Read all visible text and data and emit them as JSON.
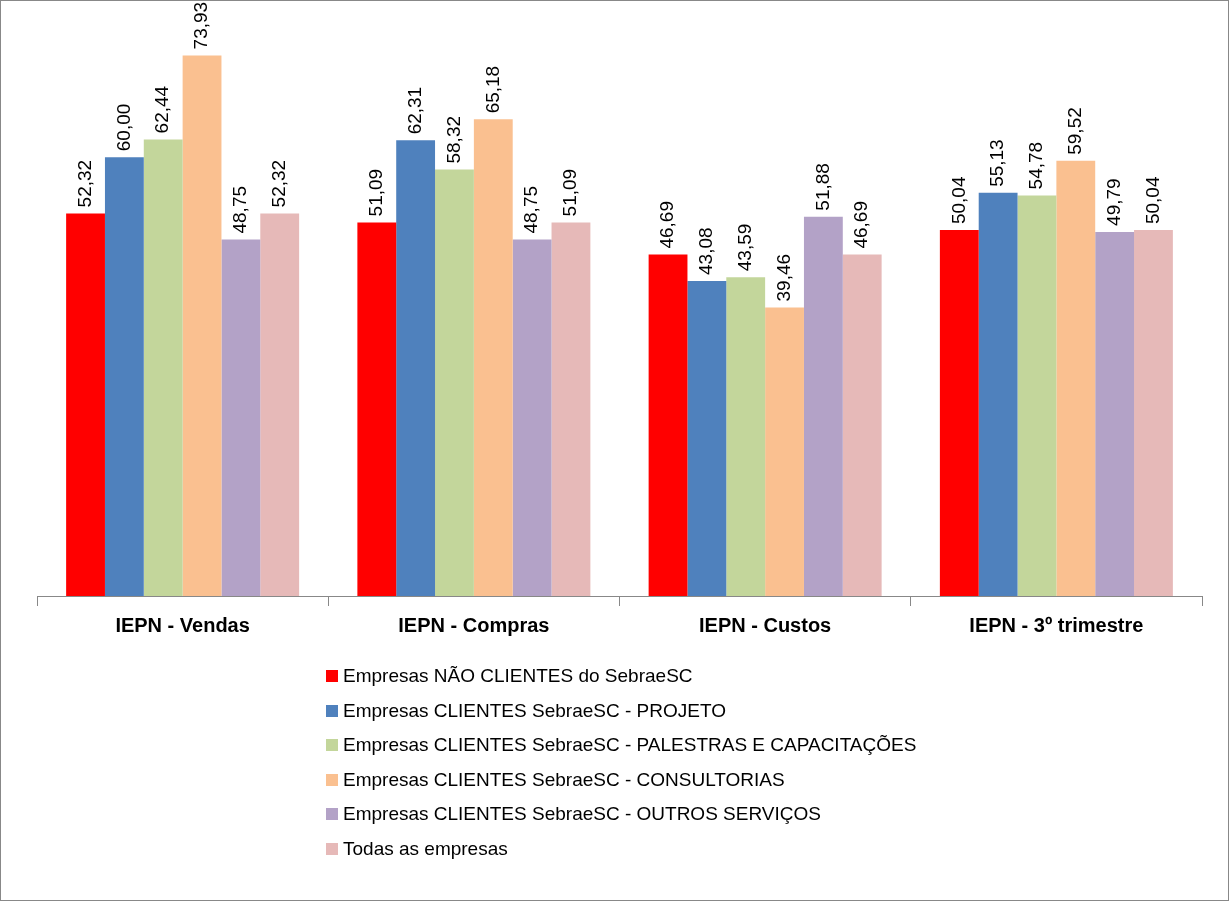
{
  "chart_data": {
    "type": "bar",
    "categories": [
      "IEPN - Vendas",
      "IEPN - Compras",
      "IEPN - Custos",
      "IEPN - 3º trimestre"
    ],
    "series": [
      {
        "name": "Empresas NÃO CLIENTES do SebraeSC",
        "color": "#ff0000",
        "values": [
          52.32,
          51.09,
          46.69,
          50.04
        ],
        "value_labels": [
          "52,32",
          "51,09",
          "46,69",
          "50,04"
        ]
      },
      {
        "name": "Empresas CLIENTES SebraeSC - PROJETO",
        "color": "#4f81bd",
        "values": [
          60.0,
          62.31,
          43.08,
          55.13
        ],
        "value_labels": [
          "60,00",
          "62,31",
          "43,08",
          "55,13"
        ]
      },
      {
        "name": "Empresas CLIENTES SebraeSC - PALESTRAS E CAPACITAÇÕES",
        "color": "#c3d69b",
        "values": [
          62.44,
          58.32,
          43.59,
          54.78
        ],
        "value_labels": [
          "62,44",
          "58,32",
          "43,59",
          "54,78"
        ]
      },
      {
        "name": "Empresas CLIENTES SebraeSC - CONSULTORIAS",
        "color": "#fac090",
        "values": [
          73.93,
          65.18,
          39.46,
          59.52
        ],
        "value_labels": [
          "73,93",
          "65,18",
          "39,46",
          "59,52"
        ]
      },
      {
        "name": "Empresas CLIENTES SebraeSC - OUTROS SERVIÇOS",
        "color": "#b3a2c7",
        "values": [
          48.75,
          48.75,
          51.88,
          49.79
        ],
        "value_labels": [
          "48,75",
          "48,75",
          "51,88",
          "49,79"
        ]
      },
      {
        "name": "Todas as empresas",
        "color": "#e6b9b8",
        "values": [
          52.32,
          51.09,
          46.69,
          50.04
        ],
        "value_labels": [
          "52,32",
          "51,09",
          "46,69",
          "50,04"
        ]
      }
    ],
    "legend": "bottom"
  }
}
